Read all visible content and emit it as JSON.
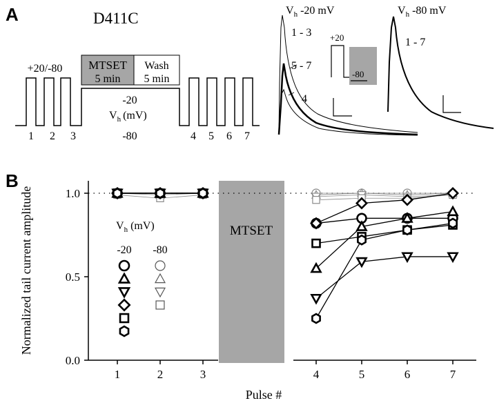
{
  "panel_a": {
    "label": "A",
    "construct": "D411C",
    "protocol": {
      "pulse_label": "+20/-80",
      "mtset_label": "MTSET",
      "mtset_duration": "5 min",
      "wash_label": "Wash",
      "wash_duration": "5 min",
      "hold_top": "-20",
      "hold_vh": "V",
      "hold_vh_sub": "h",
      "hold_unit": "(mV)",
      "hold_bottom": "-80",
      "pulse_numbers": [
        "1",
        "2",
        "3",
        "4",
        "5",
        "6",
        "7"
      ]
    },
    "traces_m20": {
      "title_v": "V",
      "title_sub": "h",
      "title_rest": "-20 mV",
      "label_13": "1 - 3",
      "label_57": "5 - 7",
      "label_4": "4",
      "inset_plus": "+20",
      "inset_minus": "-80"
    },
    "traces_m80": {
      "title_v": "V",
      "title_sub": "h",
      "title_rest": "-80 mV",
      "label_17": "1 - 7"
    }
  },
  "panel_b": {
    "label": "B",
    "shaded_label": "MTSET",
    "legend": {
      "title_v": "V",
      "title_sub": "h",
      "title_rest": " (mV)",
      "col_left": "-20",
      "col_right": "-80"
    }
  },
  "chart_data": {
    "type": "scatter",
    "xlabel": "Pulse #",
    "ylabel": "Normalized tail current amplitude",
    "ylim": [
      0.0,
      1.0
    ],
    "yticks": [
      "0.0",
      "0.5",
      "1.0"
    ],
    "xticks": [
      "1",
      "2",
      "3",
      "4",
      "5",
      "6",
      "7"
    ],
    "reference_line": 1.0,
    "markers": [
      "circle",
      "triangle-up",
      "triangle-down",
      "diamond",
      "square",
      "hexagon"
    ],
    "series": [
      {
        "marker": "circle",
        "vh": "-20",
        "x": [
          1,
          2,
          3,
          4,
          5,
          6,
          7
        ],
        "y": [
          1.0,
          1.0,
          1.0,
          0.82,
          0.85,
          0.85,
          0.85
        ]
      },
      {
        "marker": "triangle-up",
        "vh": "-20",
        "x": [
          1,
          2,
          3,
          4,
          5,
          6,
          7
        ],
        "y": [
          1.0,
          1.0,
          1.0,
          0.55,
          0.8,
          0.85,
          0.89
        ]
      },
      {
        "marker": "triangle-down",
        "vh": "-20",
        "x": [
          1,
          2,
          3,
          4,
          5,
          6,
          7
        ],
        "y": [
          1.0,
          1.0,
          1.0,
          0.37,
          0.59,
          0.62,
          0.62
        ]
      },
      {
        "marker": "diamond",
        "vh": "-20",
        "x": [
          1,
          2,
          3,
          4,
          5,
          6,
          7
        ],
        "y": [
          1.0,
          1.0,
          1.0,
          0.82,
          0.94,
          0.96,
          1.0
        ]
      },
      {
        "marker": "square",
        "vh": "-20",
        "x": [
          1,
          2,
          3,
          4,
          5,
          6,
          7
        ],
        "y": [
          1.0,
          1.0,
          1.0,
          0.7,
          0.74,
          0.78,
          0.81
        ]
      },
      {
        "marker": "hexagon",
        "vh": "-20",
        "x": [
          1,
          2,
          3,
          4,
          5,
          6,
          7
        ],
        "y": [
          1.0,
          1.0,
          1.0,
          0.25,
          0.72,
          0.78,
          0.82
        ]
      },
      {
        "marker": "circle",
        "vh": "-80",
        "x": [
          1,
          2,
          3,
          4,
          5,
          6,
          7
        ],
        "y": [
          1.0,
          1.0,
          1.0,
          1.0,
          1.0,
          1.0,
          1.0
        ]
      },
      {
        "marker": "triangle-up",
        "vh": "-80",
        "x": [
          1,
          2,
          3,
          4,
          5,
          6,
          7
        ],
        "y": [
          1.0,
          0.99,
          1.0,
          0.99,
          1.0,
          0.99,
          1.0
        ]
      },
      {
        "marker": "triangle-down",
        "vh": "-80",
        "x": [
          1,
          2,
          3,
          4,
          5,
          6,
          7
        ],
        "y": [
          1.0,
          1.0,
          1.0,
          0.98,
          0.99,
          0.98,
          0.99
        ]
      },
      {
        "marker": "square",
        "vh": "-80",
        "x": [
          1,
          2,
          3,
          4,
          5,
          6,
          7
        ],
        "y": [
          0.99,
          0.97,
          0.99,
          0.96,
          0.97,
          0.97,
          0.99
        ]
      }
    ]
  }
}
